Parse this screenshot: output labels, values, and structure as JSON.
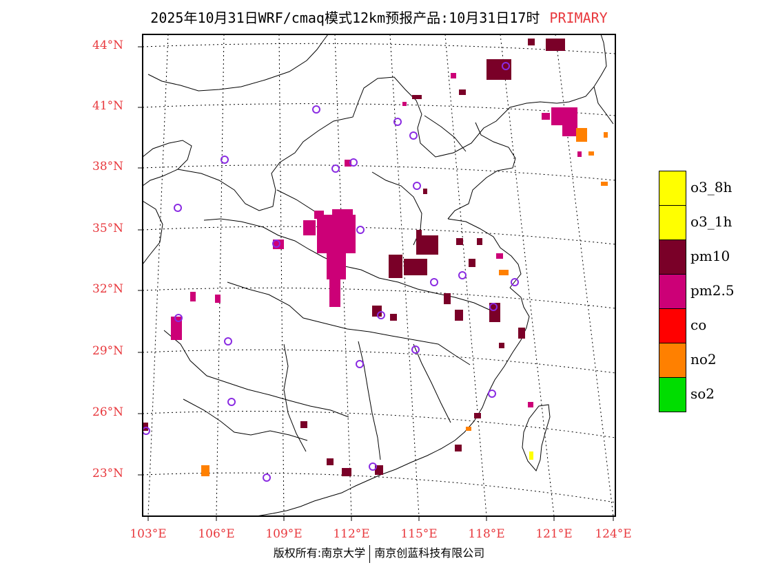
{
  "title": {
    "text": "2025年10月31日WRF/cmaq模式12km预报产品:10月31日17时",
    "tag": "PRIMARY",
    "tag_color": "#e8383d"
  },
  "axes": {
    "lat_labels": [
      "44°N",
      "41°N",
      "38°N",
      "35°N",
      "32°N",
      "29°N",
      "26°N",
      "23°N"
    ],
    "lon_labels": [
      "103°E",
      "106°E",
      "109°E",
      "112°E",
      "115°E",
      "118°E",
      "121°E",
      "124°E"
    ],
    "label_color": "#e8383d"
  },
  "legend": [
    {
      "label": "o3_8h",
      "color": "#ffff00"
    },
    {
      "label": "o3_1h",
      "color": "#ffff00"
    },
    {
      "label": "pm10",
      "color": "#7a0028"
    },
    {
      "label": "pm2.5",
      "color": "#cc0077"
    },
    {
      "label": "co",
      "color": "#ff0000"
    },
    {
      "label": "no2",
      "color": "#ff8000"
    },
    {
      "label": "so2",
      "color": "#00dd00"
    }
  ],
  "footer": {
    "left": "版权所有:南京大学",
    "right": "南京创蓝科技有限公司"
  }
}
